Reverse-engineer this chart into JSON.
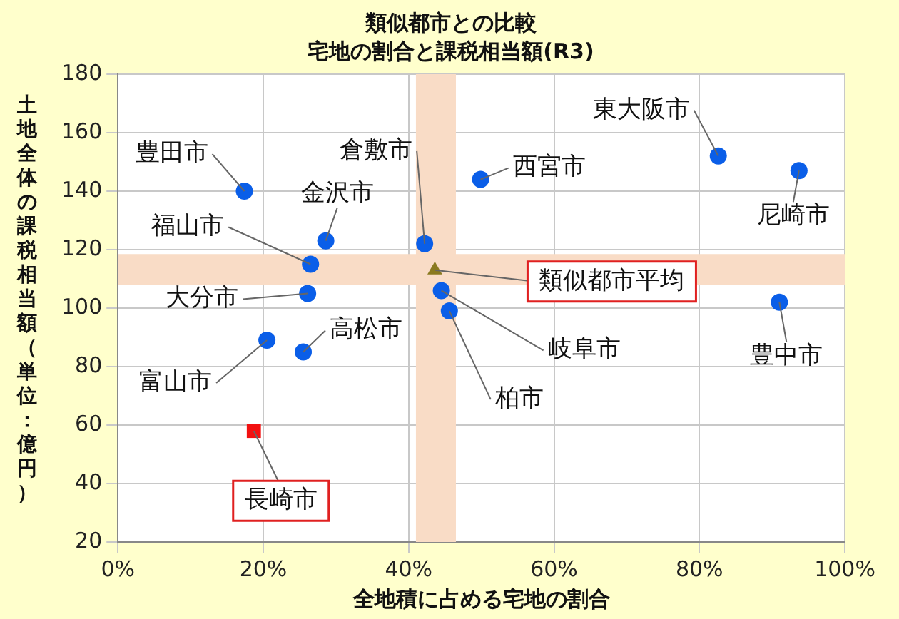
{
  "chart_data": {
    "type": "scatter",
    "title": "類似都市との比較",
    "subtitle": "宅地の割合と課税相当額(R3)",
    "xlabel": "全地積に占める宅地の割合",
    "ylabel": "土地全体の課税相当額（単位：億円）",
    "xlim": [
      0,
      100
    ],
    "xticks": [
      {
        "value": 0,
        "label": "0%"
      },
      {
        "value": 20,
        "label": "20%"
      },
      {
        "value": 40,
        "label": "40%"
      },
      {
        "value": 60,
        "label": "60%"
      },
      {
        "value": 80,
        "label": "80%"
      },
      {
        "value": 100,
        "label": "100%"
      }
    ],
    "ylim": [
      20,
      180
    ],
    "yticks": [
      20,
      40,
      60,
      80,
      100,
      120,
      140,
      160,
      180
    ],
    "grid": true,
    "legend": false,
    "series": [
      {
        "color": "#0a5ee8",
        "marker": "circle",
        "x": [
          17.4,
          28.6,
          26.5,
          42.2,
          26.1,
          25.5,
          20.5,
          44.5,
          45.6,
          49.9,
          82.6,
          93.7,
          91.0
        ],
        "values": [
          140,
          123,
          115,
          122,
          105,
          85,
          89,
          106,
          99,
          144,
          152,
          147,
          102
        ]
      },
      {
        "name": "長崎市",
        "color": "#f21010",
        "marker": "square",
        "x": [
          18.7
        ],
        "values": [
          58
        ]
      },
      {
        "name": "類似都市平均",
        "color": "#8a7a20",
        "marker": "triangle",
        "x": [
          43.6
        ],
        "values": [
          113
        ]
      }
    ],
    "bands": [
      {
        "axis": "x",
        "from": 41,
        "to": 46.5,
        "color": "#f9dcc6"
      },
      {
        "axis": "y",
        "from": 108,
        "to": 118.5,
        "color": "#f9dcc6"
      }
    ],
    "annotations": [
      {
        "text": "豊田市",
        "x": 17.4,
        "y": 140
      },
      {
        "text": "金沢市",
        "x": 28.6,
        "y": 123
      },
      {
        "text": "福山市",
        "x": 26.5,
        "y": 115
      },
      {
        "text": "倉敷市",
        "x": 42.2,
        "y": 122
      },
      {
        "text": "大分市",
        "x": 26.1,
        "y": 105
      },
      {
        "text": "高松市",
        "x": 25.5,
        "y": 85
      },
      {
        "text": "富山市",
        "x": 20.5,
        "y": 89
      },
      {
        "text": "岐阜市",
        "x": 44.5,
        "y": 106
      },
      {
        "text": "柏市",
        "x": 45.6,
        "y": 99
      },
      {
        "text": "西宮市",
        "x": 49.9,
        "y": 144
      },
      {
        "text": "東大阪市",
        "x": 82.6,
        "y": 152
      },
      {
        "text": "尼崎市",
        "x": 93.7,
        "y": 147
      },
      {
        "text": "豊中市",
        "x": 91.0,
        "y": 102
      }
    ]
  }
}
